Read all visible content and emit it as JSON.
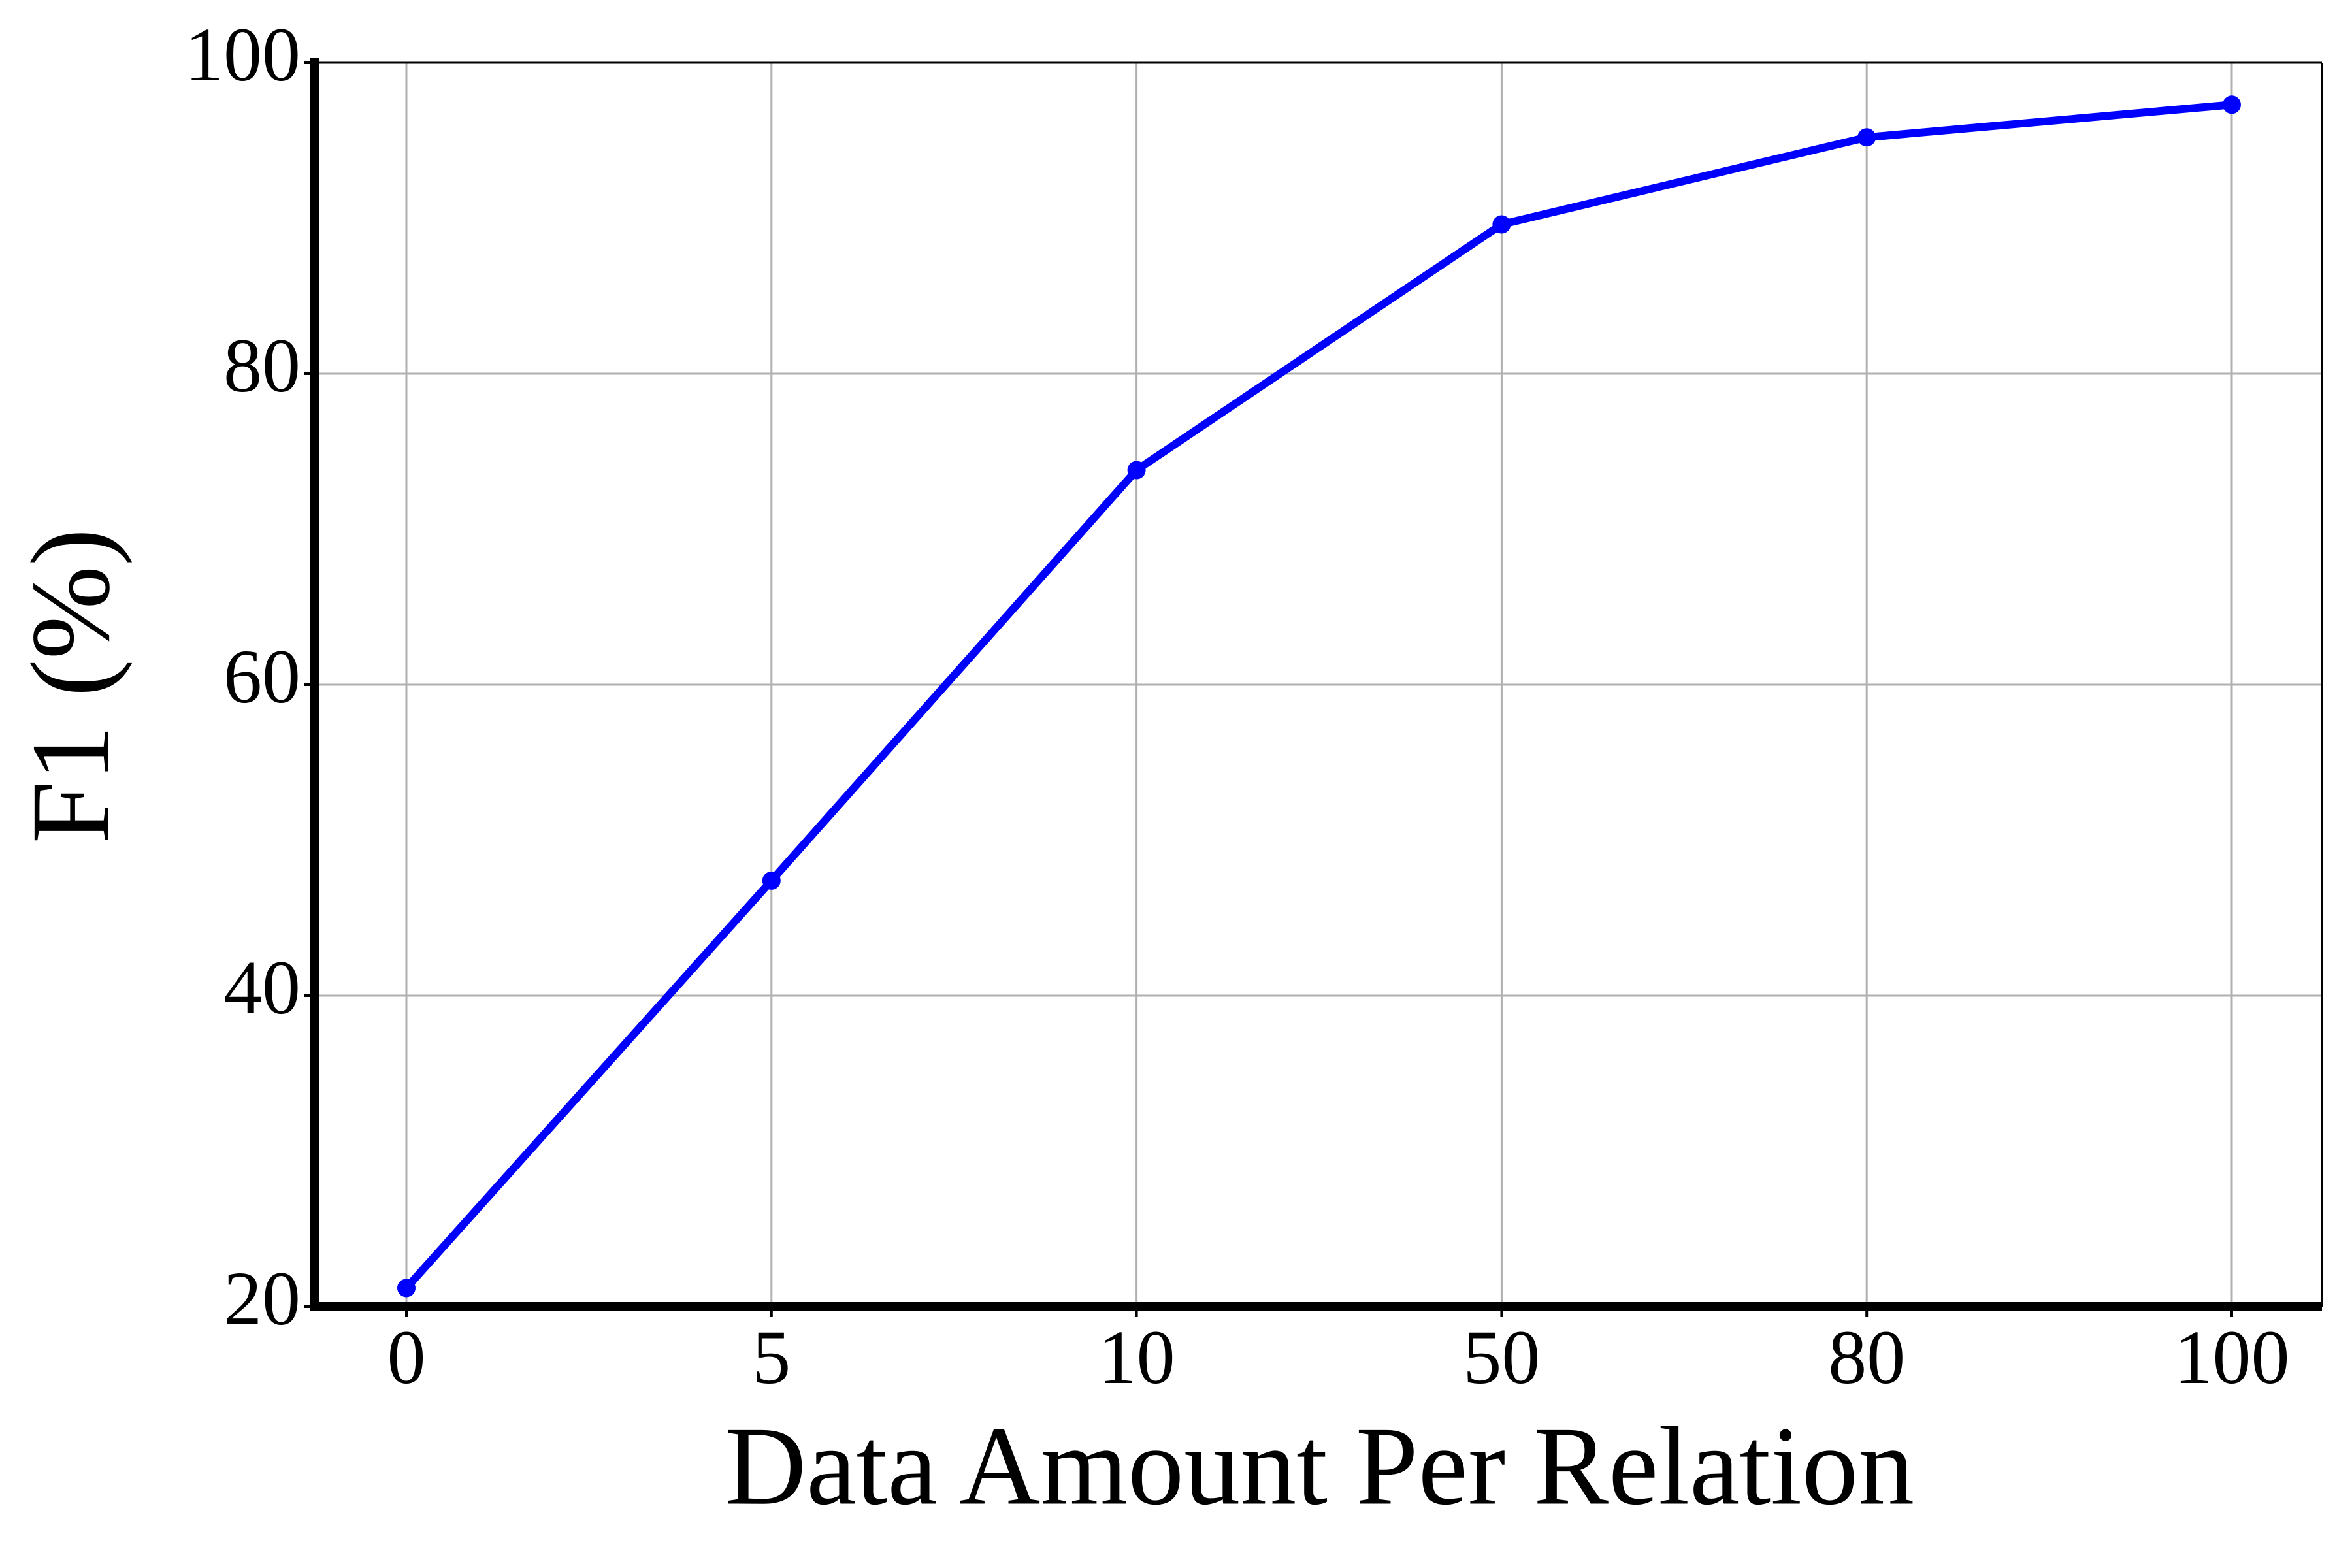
{
  "chart_data": {
    "type": "line",
    "x_label": "Data Amount Per Relation",
    "y_label": "F1 (%)",
    "categories": [
      "0",
      "5",
      "10",
      "50",
      "80",
      "100"
    ],
    "series": [
      {
        "color": "#0000ff",
        "values": [
          21.2,
          47.4,
          73.8,
          89.6,
          95.2,
          97.3
        ]
      }
    ],
    "ylim": [
      20,
      100
    ],
    "yticks": [
      20,
      40,
      60,
      80,
      100
    ],
    "grid": true,
    "markers": true
  }
}
